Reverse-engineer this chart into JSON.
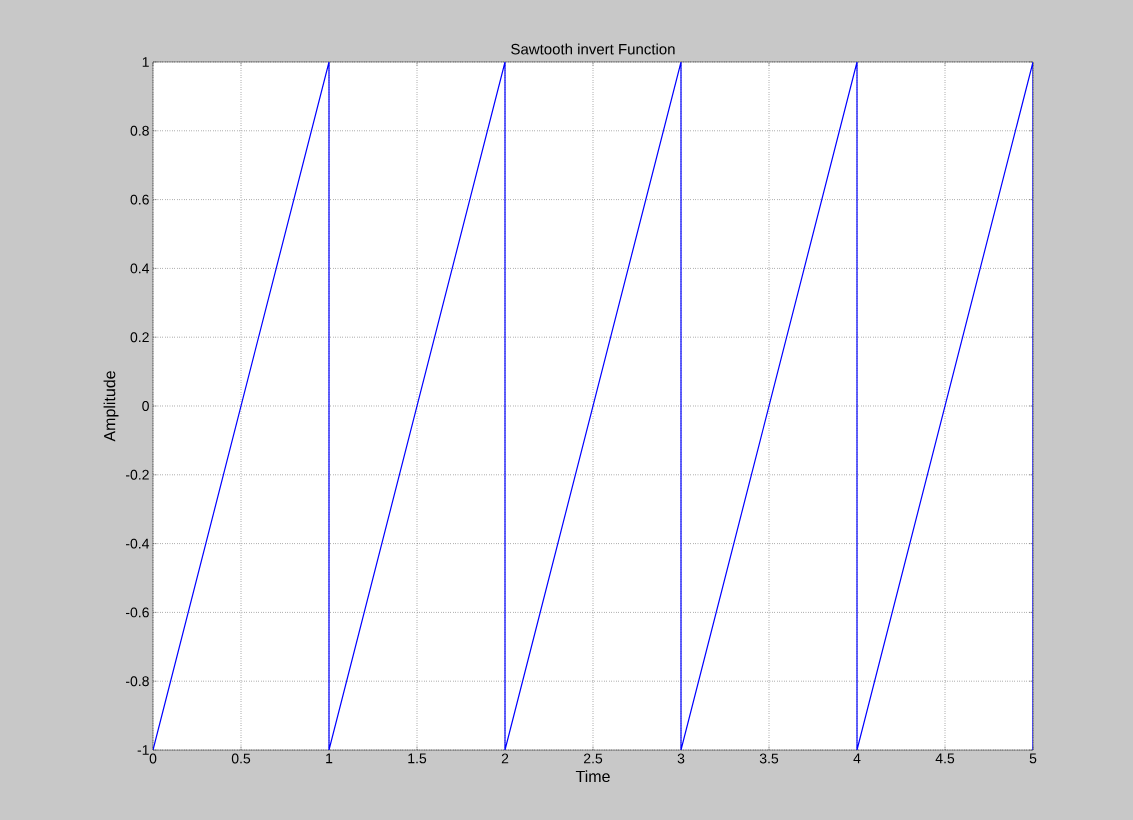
{
  "chart_data": {
    "type": "line",
    "title": "Sawtooth invert Function",
    "xlabel": "Time",
    "ylabel": "Amplitude",
    "x": [
      0,
      1,
      1,
      2,
      2,
      3,
      3,
      4,
      4,
      5,
      5
    ],
    "series": [
      {
        "color": "#0000ff",
        "values": [
          -1,
          1,
          -1,
          1,
          -1,
          1,
          -1,
          1,
          -1,
          1,
          -1
        ]
      }
    ],
    "xlim": [
      0,
      5
    ],
    "ylim": [
      -1,
      1
    ],
    "xticks": [
      0,
      0.5,
      1,
      1.5,
      2,
      2.5,
      3,
      3.5,
      4,
      4.5,
      5
    ],
    "yticks": [
      -1,
      -0.8,
      -0.6,
      -0.4,
      -0.2,
      0,
      0.2,
      0.4,
      0.6,
      0.8,
      1
    ],
    "grid": true,
    "marker": "none",
    "line_style": "solid"
  }
}
